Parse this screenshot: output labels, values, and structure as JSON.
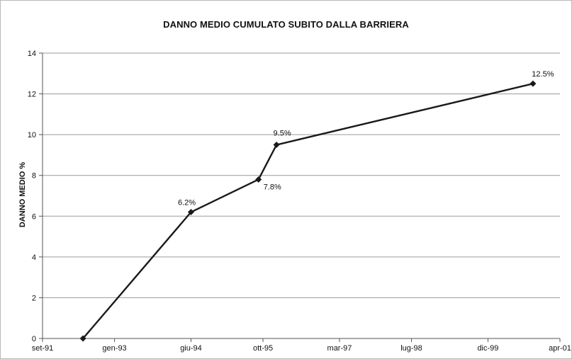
{
  "chart_data": {
    "type": "line",
    "title": "DANNO MEDIO CUMULATO SUBITO DALLA BARRIERA",
    "xlabel": "",
    "ylabel": "DANNO MEDIO %",
    "x_ticks": [
      "set-91",
      "gen-93",
      "giu-94",
      "ott-95",
      "mar-97",
      "lug-98",
      "dic-99",
      "apr-01"
    ],
    "y_ticks": [
      "0",
      "2",
      "4",
      "6",
      "8",
      "10",
      "12",
      "14"
    ],
    "ylim": [
      0,
      14
    ],
    "grid": true,
    "series": [
      {
        "values": [
          {
            "x": "giu-92",
            "y": 0,
            "label": ""
          },
          {
            "x": "giu-94",
            "y": 6.2,
            "label": "6.2%"
          },
          {
            "x": "set-95",
            "y": 7.8,
            "label": "7.8%"
          },
          {
            "x": "gen-96",
            "y": 9.5,
            "label": "9.5%"
          },
          {
            "x": "ott-00",
            "y": 12.5,
            "label": "12.5%"
          }
        ]
      }
    ],
    "colors": {
      "line": "#1a1a1a",
      "grid": "#9a9a9a",
      "axis": "#555555"
    }
  }
}
